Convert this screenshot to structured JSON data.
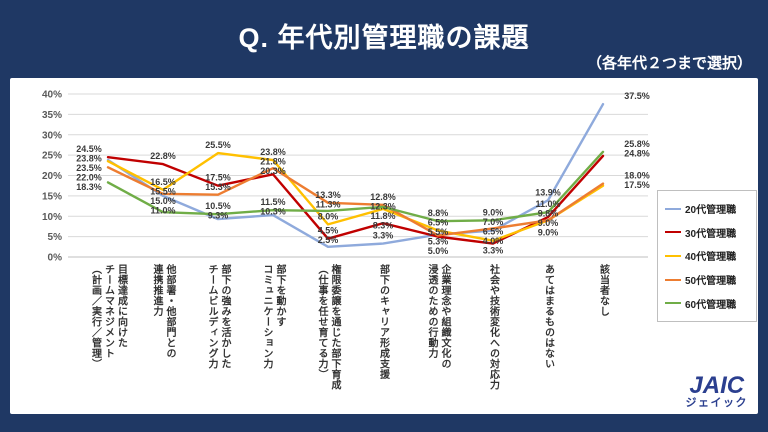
{
  "header": {
    "title": "Q. 年代別管理職の課題",
    "subtitle": "（各年代２つまで選択）"
  },
  "chart_data": {
    "type": "line",
    "title": "Q. 年代別管理職の課題",
    "xlabel": "",
    "ylabel": "",
    "ylim": [
      0,
      40
    ],
    "ytick_step": 5,
    "ytick_suffix": "%",
    "grid": true,
    "legend_position": "right",
    "value_labels": true,
    "value_label_suffix": "%",
    "categories": [
      "目標達成に向けた\nチームマネジメント\n（計画／実行／管理）",
      "他部署・他部門との\n連携推進力",
      "部下の強みを活かした\nチームビルディング力",
      "部下を動かす\nコミュニケーション力",
      "権限委譲を通じた部下育成\n（仕事を任せ育てる力）",
      "部下のキャリア形成支援",
      "企業理念や組織文化の\n浸透のための行動力",
      "社会や技術変化への対応力",
      "あてはまるものはない",
      "該当者なし"
    ],
    "series": [
      {
        "name": "20代管理職",
        "color": "#8faadc",
        "values": [
          23.8,
          15.0,
          9.3,
          10.3,
          2.5,
          3.3,
          5.5,
          6.5,
          13.9,
          37.5
        ]
      },
      {
        "name": "30代管理職",
        "color": "#c00000",
        "values": [
          24.5,
          22.8,
          17.5,
          20.3,
          4.5,
          8.3,
          5.0,
          3.3,
          9.8,
          24.8
        ]
      },
      {
        "name": "40代管理職",
        "color": "#ffc000",
        "values": [
          23.5,
          16.5,
          25.5,
          23.8,
          8.0,
          11.8,
          6.5,
          4.0,
          9.0,
          17.5
        ]
      },
      {
        "name": "50代管理職",
        "color": "#ed7d31",
        "values": [
          22.0,
          15.5,
          15.3,
          21.8,
          13.3,
          12.8,
          5.3,
          7.0,
          9.0,
          18.0
        ]
      },
      {
        "name": "60代管理職",
        "color": "#70ad47",
        "values": [
          18.3,
          11.0,
          10.5,
          11.5,
          11.3,
          12.3,
          8.8,
          9.0,
          11.0,
          25.8
        ]
      }
    ]
  },
  "footer": {
    "logo_text": "JAIC",
    "logo_subtext": "ジェイック"
  }
}
